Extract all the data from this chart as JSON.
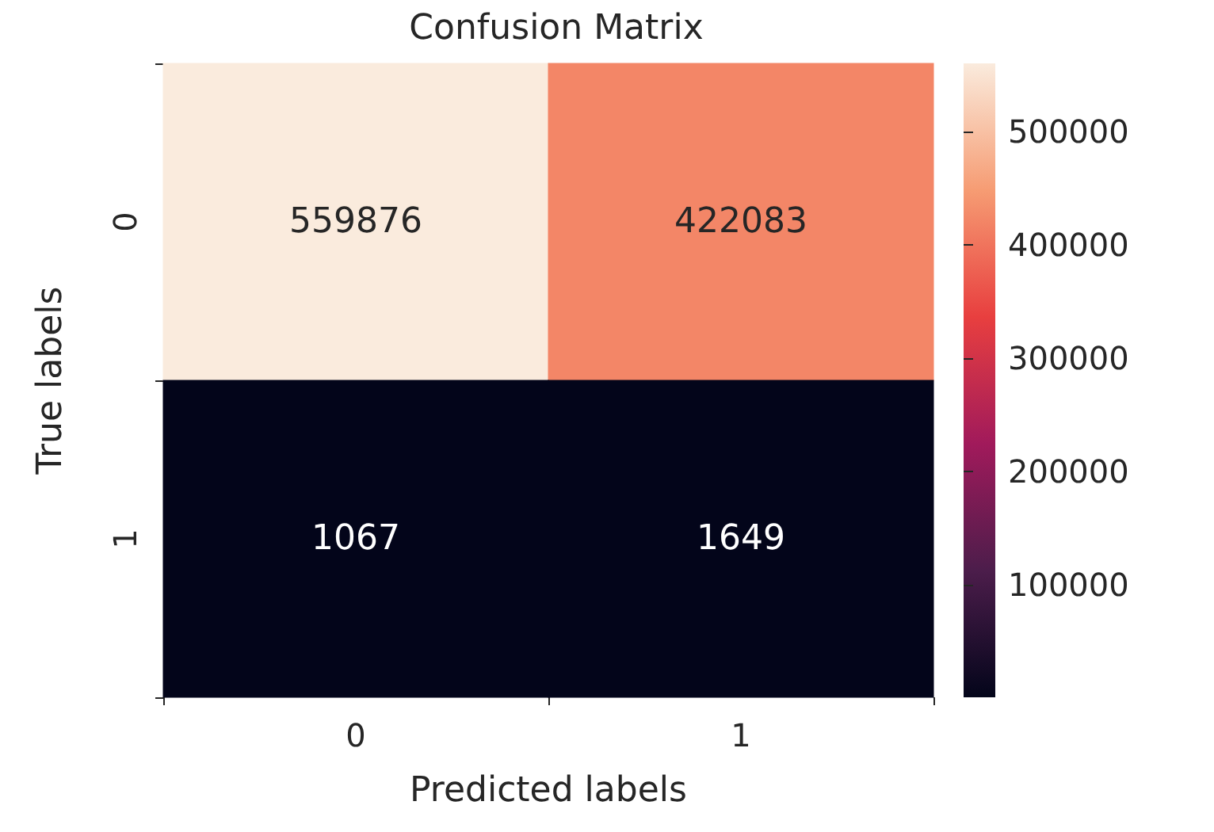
{
  "chart_data": {
    "type": "heatmap",
    "title": "Confusion Matrix",
    "xlabel": "Predicted labels",
    "ylabel": "True labels",
    "categories": [
      "0",
      "1"
    ],
    "y_categories": [
      "0",
      "1"
    ],
    "cells": [
      [
        559876,
        422083
      ],
      [
        1067,
        1649
      ]
    ],
    "data_labels": true,
    "clim": [
      1067,
      559876
    ],
    "cticks": [
      100000,
      200000,
      300000,
      400000,
      500000
    ]
  }
}
